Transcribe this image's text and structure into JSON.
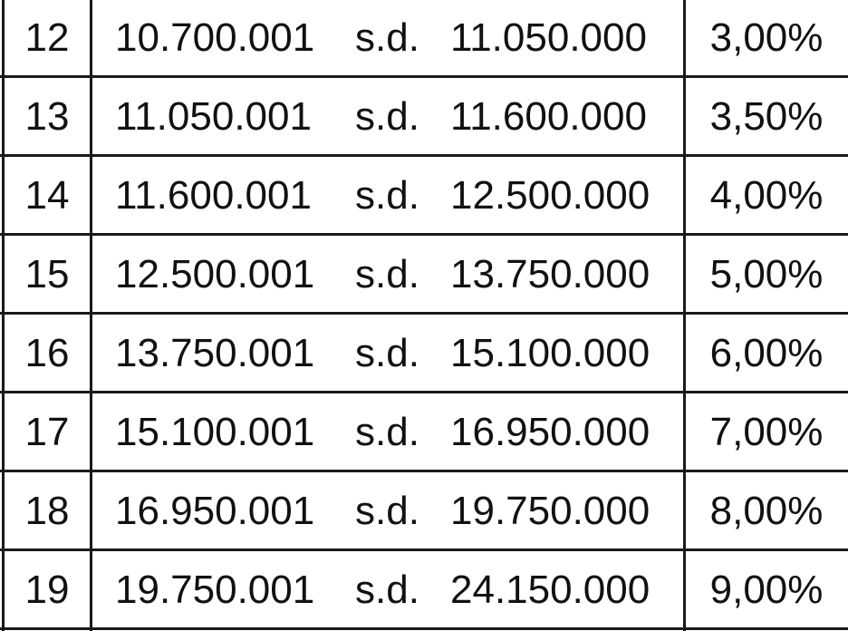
{
  "table": {
    "rows": [
      [
        "12",
        "10.700.001",
        "s.d.",
        "11.050.000",
        "3,00%"
      ],
      [
        "13",
        "11.050.001",
        "s.d.",
        "11.600.000",
        "3,50%"
      ],
      [
        "14",
        "11.600.001",
        "s.d.",
        "12.500.000",
        "4,00%"
      ],
      [
        "15",
        "12.500.001",
        "s.d.",
        "13.750.000",
        "5,00%"
      ],
      [
        "16",
        "13.750.001",
        "s.d.",
        "15.100.000",
        "6,00%"
      ],
      [
        "17",
        "15.100.001",
        "s.d.",
        "16.950.000",
        "7,00%"
      ],
      [
        "18",
        "16.950.001",
        "s.d.",
        "19.750.000",
        "8,00%"
      ],
      [
        "19",
        "19.750.001",
        "s.d.",
        "24.150.000",
        "9,00%"
      ]
    ]
  }
}
